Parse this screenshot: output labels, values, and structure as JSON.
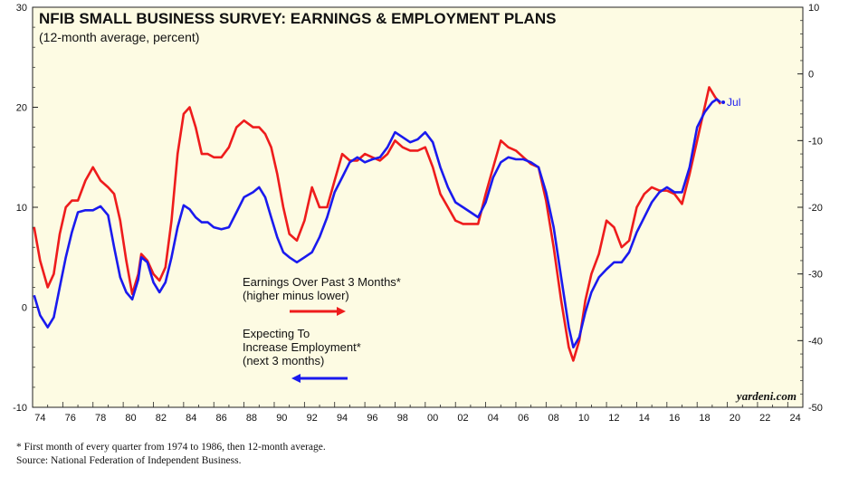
{
  "chart_data": {
    "type": "line",
    "title": "NFIB SMALL BUSINESS SURVEY: EARNINGS & EMPLOYMENT PLANS",
    "subtitle": "(12-month average, percent)",
    "x_ticks": [
      "74",
      "76",
      "78",
      "80",
      "82",
      "84",
      "86",
      "88",
      "90",
      "92",
      "94",
      "96",
      "98",
      "00",
      "02",
      "04",
      "06",
      "08",
      "10",
      "12",
      "14",
      "16",
      "18",
      "20",
      "22",
      "24"
    ],
    "xlim": [
      1974,
      2025
    ],
    "left_axis": {
      "ylim": [
        -10,
        30
      ],
      "ticks": [
        -10,
        0,
        10,
        20,
        30
      ]
    },
    "right_axis": {
      "ylim": [
        -50,
        10
      ],
      "ticks": [
        -50,
        -40,
        -30,
        -20,
        -10,
        0,
        10
      ]
    },
    "colors": {
      "earnings": "#ee1c1c",
      "employment": "#1a1aee",
      "plot_bg": "#fdfbe3"
    },
    "last_label": "Jul",
    "series": [
      {
        "name": "Expecting To Increase Employment* (next 3 months)",
        "legend_lines": [
          "Expecting To",
          "Increase Employment*",
          "(next 3 months)"
        ],
        "axis": "left",
        "arrow": "left",
        "points": [
          [
            1974.1,
            1.2
          ],
          [
            1974.5,
            -0.8
          ],
          [
            1975.0,
            -2.0
          ],
          [
            1975.4,
            -1.0
          ],
          [
            1975.8,
            2.0
          ],
          [
            1976.2,
            5.0
          ],
          [
            1976.6,
            7.5
          ],
          [
            1977.0,
            9.5
          ],
          [
            1977.5,
            9.7
          ],
          [
            1978.0,
            9.7
          ],
          [
            1978.5,
            10.1
          ],
          [
            1979.0,
            9.2
          ],
          [
            1979.4,
            6.0
          ],
          [
            1979.8,
            3.0
          ],
          [
            1980.2,
            1.5
          ],
          [
            1980.6,
            0.8
          ],
          [
            1981.0,
            2.8
          ],
          [
            1981.2,
            5.0
          ],
          [
            1981.6,
            4.5
          ],
          [
            1982.0,
            2.5
          ],
          [
            1982.4,
            1.5
          ],
          [
            1982.8,
            2.5
          ],
          [
            1983.2,
            5.0
          ],
          [
            1983.6,
            8.0
          ],
          [
            1984.0,
            10.2
          ],
          [
            1984.4,
            9.8
          ],
          [
            1984.8,
            9.0
          ],
          [
            1985.2,
            8.5
          ],
          [
            1985.6,
            8.5
          ],
          [
            1986.0,
            8.0
          ],
          [
            1986.5,
            7.8
          ],
          [
            1987.0,
            8.0
          ],
          [
            1987.5,
            9.5
          ],
          [
            1988.0,
            11.0
          ],
          [
            1988.6,
            11.5
          ],
          [
            1989.0,
            12.0
          ],
          [
            1989.4,
            11.0
          ],
          [
            1989.8,
            9.0
          ],
          [
            1990.2,
            7.0
          ],
          [
            1990.6,
            5.5
          ],
          [
            1991.0,
            5.0
          ],
          [
            1991.5,
            4.5
          ],
          [
            1992.0,
            5.0
          ],
          [
            1992.5,
            5.5
          ],
          [
            1993.0,
            7.0
          ],
          [
            1993.5,
            9.0
          ],
          [
            1994.0,
            11.5
          ],
          [
            1994.5,
            13.0
          ],
          [
            1995.0,
            14.5
          ],
          [
            1995.5,
            15.0
          ],
          [
            1996.0,
            14.5
          ],
          [
            1996.5,
            14.8
          ],
          [
            1997.0,
            15.0
          ],
          [
            1997.5,
            16.0
          ],
          [
            1998.0,
            17.5
          ],
          [
            1998.5,
            17.0
          ],
          [
            1999.0,
            16.5
          ],
          [
            1999.5,
            16.8
          ],
          [
            2000.0,
            17.5
          ],
          [
            2000.5,
            16.5
          ],
          [
            2001.0,
            14.0
          ],
          [
            2001.5,
            12.0
          ],
          [
            2002.0,
            10.5
          ],
          [
            2002.5,
            10.0
          ],
          [
            2003.0,
            9.5
          ],
          [
            2003.5,
            9.0
          ],
          [
            2004.0,
            10.5
          ],
          [
            2004.5,
            13.0
          ],
          [
            2005.0,
            14.5
          ],
          [
            2005.5,
            15.0
          ],
          [
            2006.0,
            14.8
          ],
          [
            2006.5,
            14.8
          ],
          [
            2007.0,
            14.5
          ],
          [
            2007.5,
            14.0
          ],
          [
            2008.0,
            11.5
          ],
          [
            2008.5,
            8.0
          ],
          [
            2009.0,
            3.0
          ],
          [
            2009.5,
            -2.0
          ],
          [
            2009.8,
            -4.0
          ],
          [
            2010.2,
            -3.0
          ],
          [
            2010.6,
            -0.5
          ],
          [
            2011.0,
            1.5
          ],
          [
            2011.5,
            3.0
          ],
          [
            2012.0,
            3.8
          ],
          [
            2012.5,
            4.5
          ],
          [
            2013.0,
            4.5
          ],
          [
            2013.5,
            5.5
          ],
          [
            2014.0,
            7.5
          ],
          [
            2014.5,
            9.0
          ],
          [
            2015.0,
            10.5
          ],
          [
            2015.5,
            11.5
          ],
          [
            2016.0,
            12.0
          ],
          [
            2016.5,
            11.5
          ],
          [
            2017.0,
            11.5
          ],
          [
            2017.5,
            14.0
          ],
          [
            2018.0,
            18.0
          ],
          [
            2018.5,
            19.5
          ],
          [
            2019.0,
            20.5
          ],
          [
            2019.3,
            20.8
          ],
          [
            2019.55,
            20.5
          ]
        ]
      },
      {
        "name": "Earnings Over Past 3 Months* (higher minus lower)",
        "legend_lines": [
          "Earnings Over Past 3 Months*",
          "(higher minus lower)"
        ],
        "axis": "right",
        "arrow": "right",
        "points": [
          [
            1974.1,
            -23
          ],
          [
            1974.5,
            -28
          ],
          [
            1975.0,
            -32
          ],
          [
            1975.4,
            -30
          ],
          [
            1975.8,
            -24
          ],
          [
            1976.2,
            -20
          ],
          [
            1976.6,
            -19
          ],
          [
            1977.0,
            -19
          ],
          [
            1977.5,
            -16
          ],
          [
            1978.0,
            -14
          ],
          [
            1978.5,
            -16
          ],
          [
            1979.0,
            -17
          ],
          [
            1979.4,
            -18
          ],
          [
            1979.8,
            -22
          ],
          [
            1980.2,
            -28
          ],
          [
            1980.6,
            -33
          ],
          [
            1981.0,
            -30
          ],
          [
            1981.2,
            -27
          ],
          [
            1981.6,
            -28
          ],
          [
            1982.0,
            -30
          ],
          [
            1982.4,
            -31
          ],
          [
            1982.8,
            -29
          ],
          [
            1983.2,
            -22
          ],
          [
            1983.6,
            -12
          ],
          [
            1984.0,
            -6
          ],
          [
            1984.4,
            -5
          ],
          [
            1984.8,
            -8
          ],
          [
            1985.2,
            -12
          ],
          [
            1985.6,
            -12
          ],
          [
            1986.0,
            -12.5
          ],
          [
            1986.5,
            -12.5
          ],
          [
            1987.0,
            -11
          ],
          [
            1987.5,
            -8
          ],
          [
            1988.0,
            -7
          ],
          [
            1988.6,
            -8
          ],
          [
            1989.0,
            -8
          ],
          [
            1989.4,
            -9
          ],
          [
            1989.8,
            -11
          ],
          [
            1990.2,
            -15
          ],
          [
            1990.6,
            -20
          ],
          [
            1991.0,
            -24
          ],
          [
            1991.5,
            -25
          ],
          [
            1992.0,
            -22
          ],
          [
            1992.5,
            -17
          ],
          [
            1993.0,
            -20
          ],
          [
            1993.5,
            -20
          ],
          [
            1994.0,
            -16
          ],
          [
            1994.5,
            -12
          ],
          [
            1995.0,
            -13
          ],
          [
            1995.5,
            -13
          ],
          [
            1996.0,
            -12
          ],
          [
            1996.5,
            -12.5
          ],
          [
            1997.0,
            -13
          ],
          [
            1997.5,
            -12
          ],
          [
            1998.0,
            -10
          ],
          [
            1998.5,
            -11
          ],
          [
            1999.0,
            -11.5
          ],
          [
            1999.5,
            -11.5
          ],
          [
            2000.0,
            -11
          ],
          [
            2000.5,
            -14
          ],
          [
            2001.0,
            -18
          ],
          [
            2001.5,
            -20
          ],
          [
            2002.0,
            -22
          ],
          [
            2002.5,
            -22.5
          ],
          [
            2003.0,
            -22.5
          ],
          [
            2003.5,
            -22.5
          ],
          [
            2004.0,
            -18
          ],
          [
            2004.5,
            -14
          ],
          [
            2005.0,
            -10
          ],
          [
            2005.5,
            -11
          ],
          [
            2006.0,
            -11.5
          ],
          [
            2006.5,
            -12.5
          ],
          [
            2007.0,
            -13.5
          ],
          [
            2007.5,
            -14
          ],
          [
            2008.0,
            -19
          ],
          [
            2008.5,
            -26
          ],
          [
            2009.0,
            -34
          ],
          [
            2009.5,
            -41
          ],
          [
            2009.8,
            -43
          ],
          [
            2010.2,
            -40
          ],
          [
            2010.6,
            -34
          ],
          [
            2011.0,
            -30
          ],
          [
            2011.5,
            -27
          ],
          [
            2012.0,
            -22
          ],
          [
            2012.5,
            -23
          ],
          [
            2013.0,
            -26
          ],
          [
            2013.5,
            -25
          ],
          [
            2014.0,
            -20
          ],
          [
            2014.5,
            -18
          ],
          [
            2015.0,
            -17
          ],
          [
            2015.5,
            -17.5
          ],
          [
            2016.0,
            -17.5
          ],
          [
            2016.5,
            -18
          ],
          [
            2017.0,
            -19.5
          ],
          [
            2017.5,
            -15
          ],
          [
            2018.0,
            -10
          ],
          [
            2018.5,
            -5
          ],
          [
            2018.8,
            -2
          ],
          [
            2019.2,
            -3.5
          ],
          [
            2019.55,
            -4.5
          ]
        ]
      }
    ],
    "grid": false,
    "legend": "inline-center"
  },
  "brand": "yardeni.com",
  "footnotes": [
    "*  First month of every quarter from 1974 to 1986, then 12-month average.",
    "    Source: National Federation of Independent Business."
  ]
}
